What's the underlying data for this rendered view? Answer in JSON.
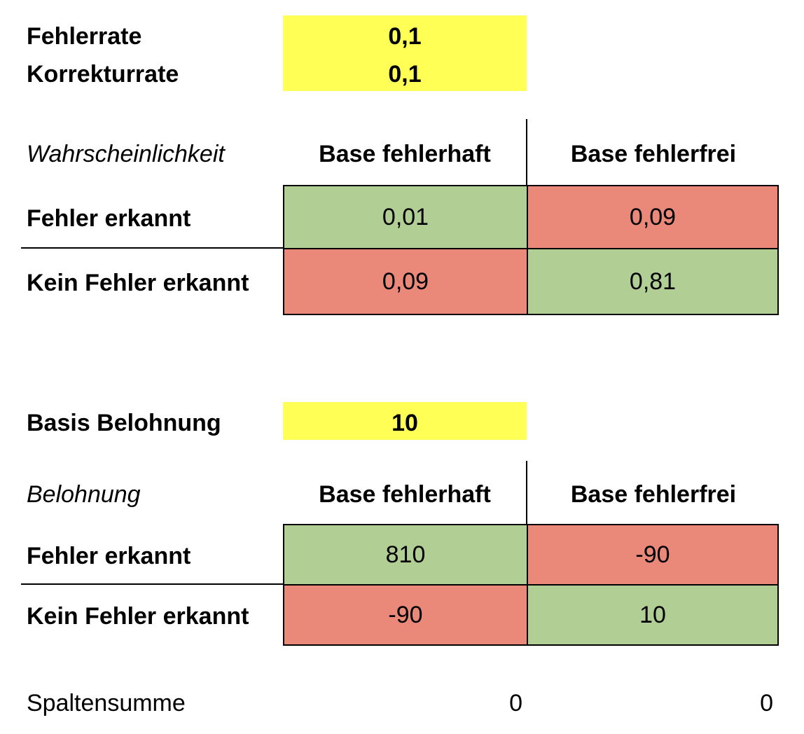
{
  "parameters": {
    "error_rate_label": "Fehlerrate",
    "error_rate_value": "0,1",
    "correction_rate_label": "Korrekturrate",
    "correction_rate_value": "0,1"
  },
  "probability_table": {
    "title": "Wahrscheinlichkeit",
    "col_headers": [
      "Base fehlerhaft",
      "Base fehlerfrei"
    ],
    "rows": [
      {
        "label": "Fehler erkannt",
        "values": [
          "0,01",
          "0,09"
        ]
      },
      {
        "label": "Kein Fehler erkannt",
        "values": [
          "0,09",
          "0,81"
        ]
      }
    ]
  },
  "base_reward": {
    "label": "Basis Belohnung",
    "value": "10"
  },
  "reward_table": {
    "title": "Belohnung",
    "col_headers": [
      "Base fehlerhaft",
      "Base fehlerfrei"
    ],
    "rows": [
      {
        "label": "Fehler erkannt",
        "values": [
          "810",
          "-90"
        ]
      },
      {
        "label": "Kein Fehler erkannt",
        "values": [
          "-90",
          "10"
        ]
      }
    ]
  },
  "column_sum": {
    "label": "Spaltensumme",
    "values": [
      "0",
      "0"
    ]
  },
  "colors": {
    "input_highlight": "#ffff55",
    "correct_cell": "#b1cf95",
    "incorrect_cell": "#ea887a"
  }
}
